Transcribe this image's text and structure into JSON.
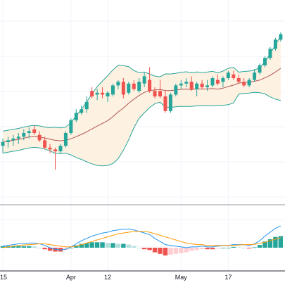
{
  "chart_data": [
    {
      "type": "candlestick",
      "panel": "price",
      "indicators": [
        "bollinger-bands",
        "moving-average"
      ],
      "grid": true,
      "colors": {
        "up": "#26a69a",
        "down": "#ef5350",
        "band": "#26a69a",
        "band_fill": "#fdf1e2",
        "basis": "#b2554f"
      },
      "candles": [
        {
          "o": 128,
          "h": 132,
          "l": 124,
          "c": 130
        },
        {
          "o": 130,
          "h": 133,
          "l": 127,
          "c": 131
        },
        {
          "o": 131,
          "h": 134,
          "l": 128,
          "c": 132
        },
        {
          "o": 132,
          "h": 135,
          "l": 129,
          "c": 133
        },
        {
          "o": 133,
          "h": 137,
          "l": 131,
          "c": 135
        },
        {
          "o": 135,
          "h": 138,
          "l": 132,
          "c": 136
        },
        {
          "o": 137,
          "h": 139,
          "l": 134,
          "c": 135
        },
        {
          "o": 134,
          "h": 136,
          "l": 130,
          "c": 131
        },
        {
          "o": 131,
          "h": 133,
          "l": 126,
          "c": 127
        },
        {
          "o": 127,
          "h": 129,
          "l": 124,
          "c": 126
        },
        {
          "o": 126,
          "h": 127,
          "l": 115,
          "c": 125
        },
        {
          "o": 125,
          "h": 129,
          "l": 124,
          "c": 128
        },
        {
          "o": 128,
          "h": 136,
          "l": 127,
          "c": 135
        },
        {
          "o": 135,
          "h": 143,
          "l": 134,
          "c": 142
        },
        {
          "o": 142,
          "h": 148,
          "l": 141,
          "c": 146
        },
        {
          "o": 146,
          "h": 150,
          "l": 145,
          "c": 148
        },
        {
          "o": 148,
          "h": 155,
          "l": 146,
          "c": 152
        },
        {
          "o": 158,
          "h": 160,
          "l": 154,
          "c": 155
        },
        {
          "o": 156,
          "h": 159,
          "l": 153,
          "c": 157
        },
        {
          "o": 157,
          "h": 160,
          "l": 154,
          "c": 156
        },
        {
          "o": 155,
          "h": 158,
          "l": 152,
          "c": 157
        },
        {
          "o": 156,
          "h": 162,
          "l": 155,
          "c": 161
        },
        {
          "o": 161,
          "h": 164,
          "l": 159,
          "c": 163
        },
        {
          "o": 163,
          "h": 165,
          "l": 154,
          "c": 156
        },
        {
          "o": 157,
          "h": 163,
          "l": 156,
          "c": 162
        },
        {
          "o": 162,
          "h": 164,
          "l": 158,
          "c": 159
        },
        {
          "o": 158,
          "h": 165,
          "l": 157,
          "c": 163
        },
        {
          "o": 162,
          "h": 168,
          "l": 160,
          "c": 166
        },
        {
          "o": 164,
          "h": 171,
          "l": 157,
          "c": 158
        },
        {
          "o": 158,
          "h": 160,
          "l": 154,
          "c": 155
        },
        {
          "o": 158,
          "h": 164,
          "l": 154,
          "c": 155
        },
        {
          "o": 155,
          "h": 158,
          "l": 146,
          "c": 147
        },
        {
          "o": 147,
          "h": 157,
          "l": 146,
          "c": 156
        },
        {
          "o": 156,
          "h": 162,
          "l": 155,
          "c": 161
        },
        {
          "o": 161,
          "h": 164,
          "l": 159,
          "c": 162
        },
        {
          "o": 162,
          "h": 165,
          "l": 160,
          "c": 163
        },
        {
          "o": 163,
          "h": 166,
          "l": 158,
          "c": 159
        },
        {
          "o": 159,
          "h": 163,
          "l": 155,
          "c": 162
        },
        {
          "o": 162,
          "h": 164,
          "l": 159,
          "c": 160
        },
        {
          "o": 160,
          "h": 164,
          "l": 158,
          "c": 161
        },
        {
          "o": 161,
          "h": 166,
          "l": 160,
          "c": 165
        },
        {
          "o": 164,
          "h": 167,
          "l": 161,
          "c": 162
        },
        {
          "o": 163,
          "h": 166,
          "l": 160,
          "c": 165
        },
        {
          "o": 165,
          "h": 169,
          "l": 164,
          "c": 168
        },
        {
          "o": 167,
          "h": 169,
          "l": 164,
          "c": 165
        },
        {
          "o": 165,
          "h": 167,
          "l": 162,
          "c": 163
        },
        {
          "o": 163,
          "h": 165,
          "l": 160,
          "c": 161
        },
        {
          "o": 161,
          "h": 165,
          "l": 160,
          "c": 164
        },
        {
          "o": 164,
          "h": 170,
          "l": 163,
          "c": 168
        },
        {
          "o": 168,
          "h": 173,
          "l": 167,
          "c": 172
        },
        {
          "o": 172,
          "h": 177,
          "l": 171,
          "c": 176
        },
        {
          "o": 176,
          "h": 182,
          "l": 175,
          "c": 181
        },
        {
          "o": 181,
          "h": 187,
          "l": 180,
          "c": 186
        },
        {
          "o": 186,
          "h": 190,
          "l": 185,
          "c": 189
        }
      ]
    },
    {
      "type": "line",
      "panel": "oscillator",
      "series": [
        {
          "color": "#2196f3",
          "values": [
            0.2,
            0.3,
            0.4,
            0.5,
            0.55,
            0.6,
            0.6,
            0.5,
            0.3,
            0.0,
            -0.2,
            -0.3,
            -0.2,
            0.1,
            0.5,
            0.9,
            1.2,
            1.5,
            1.7,
            1.9,
            2.0,
            2.2,
            2.3,
            2.4,
            2.4,
            2.3,
            2.1,
            1.9,
            1.7,
            1.2,
            0.8,
            0.4,
            0.3,
            0.2,
            0.1,
            0.0,
            0.1,
            0.1,
            0.2,
            0.1,
            0.1,
            0.2,
            0.3,
            0.3,
            0.4,
            0.4,
            0.4,
            0.3,
            0.5,
            0.9,
            1.5,
            2.0,
            2.5,
            2.8
          ]
        },
        {
          "color": "#ff9800",
          "values": [
            0.0,
            0.1,
            0.2,
            0.3,
            0.35,
            0.4,
            0.45,
            0.5,
            0.5,
            0.4,
            0.3,
            0.2,
            0.1,
            0.1,
            0.2,
            0.4,
            0.6,
            0.8,
            1.0,
            1.2,
            1.4,
            1.6,
            1.8,
            1.9,
            2.0,
            2.1,
            2.1,
            2.1,
            2.0,
            1.8,
            1.6,
            1.4,
            1.2,
            1.0,
            0.8,
            0.6,
            0.5,
            0.4,
            0.4,
            0.3,
            0.3,
            0.3,
            0.3,
            0.3,
            0.3,
            0.35,
            0.4,
            0.4,
            0.45,
            0.55,
            0.7,
            0.9,
            1.1,
            1.3
          ]
        }
      ],
      "histogram": [
        0.2,
        0.2,
        0.2,
        0.2,
        0.2,
        0.2,
        0.15,
        0.0,
        -0.2,
        -0.4,
        -0.5,
        -0.5,
        -0.3,
        0.0,
        0.3,
        0.5,
        0.6,
        0.7,
        0.7,
        0.7,
        0.6,
        0.6,
        0.5,
        0.5,
        0.4,
        0.2,
        0.0,
        -0.2,
        -0.3,
        -0.6,
        -0.8,
        -1.0,
        -0.9,
        -0.8,
        -0.7,
        -0.6,
        -0.4,
        -0.3,
        -0.2,
        -0.2,
        -0.2,
        -0.1,
        0.0,
        0.0,
        0.1,
        0.05,
        0.0,
        -0.1,
        0.05,
        0.35,
        0.8,
        1.1,
        1.4,
        1.5
      ],
      "histogram_colors": {
        "up_strong": "#26a69a",
        "up_weak": "#b2dfdb",
        "down_strong": "#ef5350",
        "down_weak": "#ffcdd2"
      }
    }
  ],
  "x_axis": {
    "labels": [
      {
        "text": "15",
        "index": 0
      },
      {
        "text": "Apr",
        "index": 13
      },
      {
        "text": "12",
        "index": 20
      },
      {
        "text": "May",
        "index": 34
      },
      {
        "text": "17",
        "index": 43
      }
    ]
  }
}
